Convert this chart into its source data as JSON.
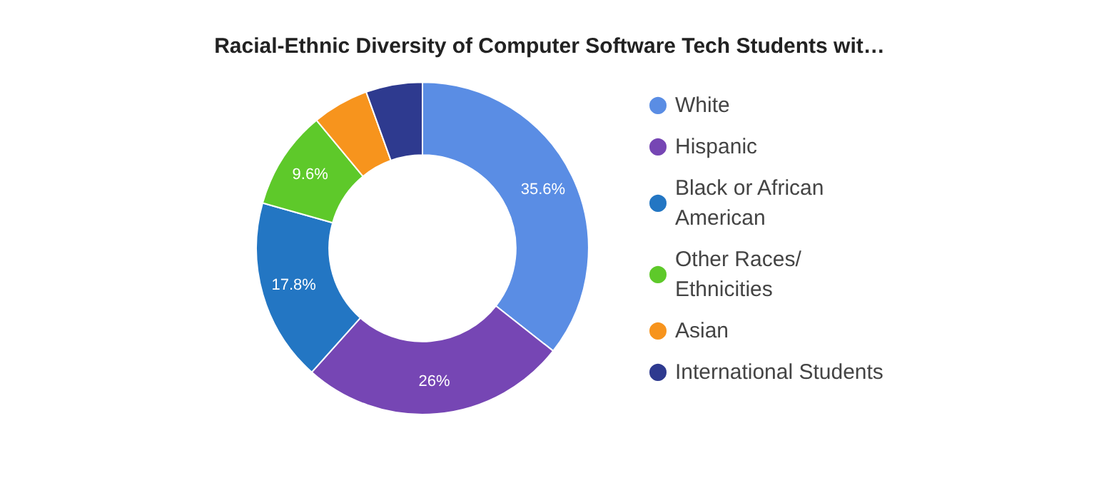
{
  "chart_data": {
    "type": "donut",
    "title": "Racial-Ethnic Diversity of Computer Software Tech Students wit…",
    "categories": [
      "White",
      "Hispanic",
      "Black or African American",
      "Other Races/ Ethnicities",
      "Asian",
      "International Students"
    ],
    "values": [
      35.6,
      26,
      17.8,
      9.6,
      5.5,
      5.5
    ],
    "value_labels": [
      "35.6%",
      "26%",
      "17.8%",
      "9.6%",
      null,
      null
    ],
    "colors": [
      "#5a8de4",
      "#7646b4",
      "#2376c3",
      "#5ec92a",
      "#f7941d",
      "#2e3a8f"
    ],
    "legend": "right"
  }
}
